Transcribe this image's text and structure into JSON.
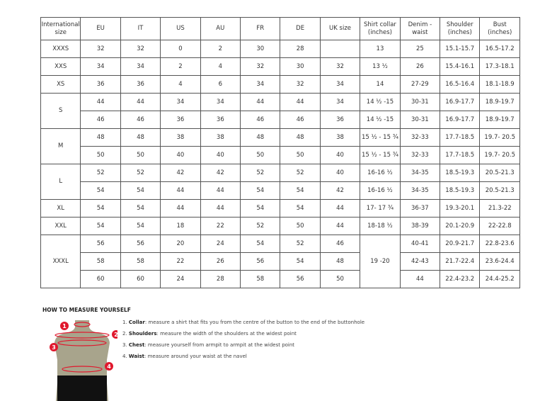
{
  "headers": [
    "International size",
    "EU",
    "IT",
    "US",
    "AU",
    "FR",
    "DE",
    "UK size",
    "Shirt collar (inches)",
    "Denim - waist",
    "Shoulder (inches)",
    "Bust (inches)"
  ],
  "groups": [
    {
      "size": "XXXS",
      "rows": [
        [
          "32",
          "32",
          "0",
          "2",
          "30",
          "28",
          "",
          "13",
          "25",
          "15.1-15.7",
          "16.5-17.2"
        ]
      ]
    },
    {
      "size": "XXS",
      "rows": [
        [
          "34",
          "34",
          "2",
          "4",
          "32",
          "30",
          "32",
          "13 ½",
          "26",
          "15.4-16.1",
          "17.3-18.1"
        ]
      ]
    },
    {
      "size": "XS",
      "rows": [
        [
          "36",
          "36",
          "4",
          "6",
          "34",
          "32",
          "34",
          "14",
          "27-29",
          "16.5-16.4",
          "18.1-18.9"
        ]
      ]
    },
    {
      "size": "S",
      "rows": [
        [
          "44",
          "44",
          "34",
          "34",
          "44",
          "44",
          "34",
          "14 ½ -15",
          "30-31",
          "16.9-17.7",
          "18.9-19.7"
        ],
        [
          "46",
          "46",
          "36",
          "36",
          "46",
          "46",
          "36",
          "14 ½ -15",
          "30-31",
          "16.9-17.7",
          "18.9-19.7"
        ]
      ]
    },
    {
      "size": "M",
      "rows": [
        [
          "48",
          "48",
          "38",
          "38",
          "48",
          "48",
          "38",
          "15 ½ - 15 ¾",
          "32-33",
          "17.7-18.5",
          "19.7- 20.5"
        ],
        [
          "50",
          "50",
          "40",
          "40",
          "50",
          "50",
          "40",
          "15 ½ - 15 ¾",
          "32-33",
          "17.7-18.5",
          "19.7- 20.5"
        ]
      ]
    },
    {
      "size": "L",
      "rows": [
        [
          "52",
          "52",
          "42",
          "42",
          "52",
          "52",
          "40",
          "16-16 ½",
          "34-35",
          "18.5-19.3",
          "20.5-21.3"
        ],
        [
          "54",
          "54",
          "44",
          "44",
          "54",
          "54",
          "42",
          "16-16 ½",
          "34-35",
          "18.5-19.3",
          "20.5-21.3"
        ]
      ]
    },
    {
      "size": "XL",
      "rows": [
        [
          "54",
          "54",
          "44",
          "44",
          "54",
          "54",
          "44",
          "17- 17 ¾",
          "36-37",
          "19.3-20.1",
          "21.3-22"
        ]
      ]
    },
    {
      "size": "XXL",
      "rows": [
        [
          "54",
          "54",
          "18",
          "22",
          "52",
          "50",
          "44",
          "18-18 ½",
          "38-39",
          "20.1-20.9",
          "22-22.8"
        ]
      ]
    },
    {
      "size": "XXXL",
      "rows": [
        [
          "56",
          "56",
          "20",
          "24",
          "54",
          "52",
          "46",
          "19 -20",
          "40-41",
          "20.9-21.7",
          "22.8-23.6"
        ],
        [
          "58",
          "58",
          "22",
          "26",
          "56",
          "54",
          "48",
          null,
          "42-43",
          "21.7-22.4",
          "23.6-24.4"
        ],
        [
          "60",
          "60",
          "24",
          "28",
          "58",
          "56",
          "50",
          null,
          "44",
          "22.4-23.2",
          "24.4-25.2"
        ]
      ]
    }
  ],
  "how_to": {
    "title": "HOW TO MEASURE YOURSELF",
    "steps": [
      {
        "num": "1.",
        "term": "Collar",
        "text": ": measure a shirt that fits you from the centre of the button to the end of the buttonhole"
      },
      {
        "num": "2.",
        "term": "Shoulders",
        "text": ": measure the width of the shoulders at the widest point"
      },
      {
        "num": "3.",
        "term": "Chest",
        "text": ": measure yourself from armpit to armpit at the widest point"
      },
      {
        "num": "4.",
        "term": "Waist",
        "text": ": measure around your waist at the navel"
      }
    ],
    "markers": [
      "1",
      "2",
      "3",
      "4"
    ]
  },
  "colors": {
    "marker": "#e0182d",
    "body": "#a8a48c",
    "shorts": "#111111"
  }
}
